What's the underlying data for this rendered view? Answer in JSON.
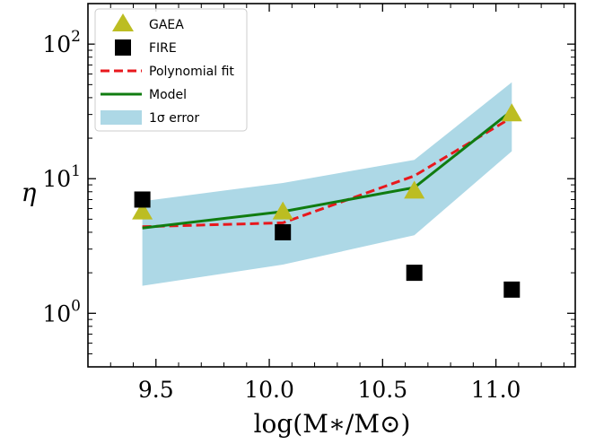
{
  "chart_data": {
    "type": "scatter",
    "x_axis": {
      "label": "log(M∗/M⊙)",
      "range": [
        9.2,
        11.35
      ],
      "ticks": [
        9.5,
        10.0,
        10.5,
        11.0
      ],
      "tick_labels": [
        "9.5",
        "10.0",
        "10.5",
        "11.0"
      ]
    },
    "y_axis": {
      "label": "η",
      "scale": "log",
      "range": [
        0.4,
        200
      ],
      "ticks": [
        1,
        10,
        100
      ],
      "tick_labels": [
        {
          "base": "10",
          "exp": "0"
        },
        {
          "base": "10",
          "exp": "1"
        },
        {
          "base": "10",
          "exp": "2"
        }
      ]
    },
    "grid": false,
    "legend_placement": "top-left",
    "series": [
      {
        "name": "GAEA",
        "kind": "marker",
        "marker": "triangle",
        "color": "#bcbd22",
        "x": [
          9.44,
          10.06,
          10.64,
          11.07
        ],
        "y": [
          5.6,
          5.6,
          8.0,
          30.0
        ]
      },
      {
        "name": "FIRE",
        "kind": "marker",
        "marker": "square",
        "color": "#000000",
        "x": [
          9.44,
          10.06,
          10.64,
          11.07
        ],
        "y": [
          7.0,
          4.0,
          2.0,
          1.5
        ]
      },
      {
        "name": "Polynomial fit",
        "kind": "line",
        "style": "dashed",
        "color": "#e8181d",
        "x": [
          9.44,
          10.06,
          10.64,
          11.07
        ],
        "y": [
          4.4,
          4.7,
          10.5,
          28.5
        ]
      },
      {
        "name": "Model",
        "kind": "line",
        "style": "solid",
        "color": "#107c10",
        "x": [
          9.44,
          10.06,
          10.64,
          11.07
        ],
        "y": [
          4.3,
          5.7,
          8.6,
          32.0
        ]
      },
      {
        "name": "1σ error",
        "kind": "band",
        "color": "#add8e6",
        "x": [
          9.44,
          10.06,
          10.64,
          11.07
        ],
        "lower": [
          1.6,
          2.3,
          3.8,
          16.0
        ],
        "upper": [
          6.8,
          9.3,
          13.8,
          52.0
        ]
      }
    ]
  }
}
